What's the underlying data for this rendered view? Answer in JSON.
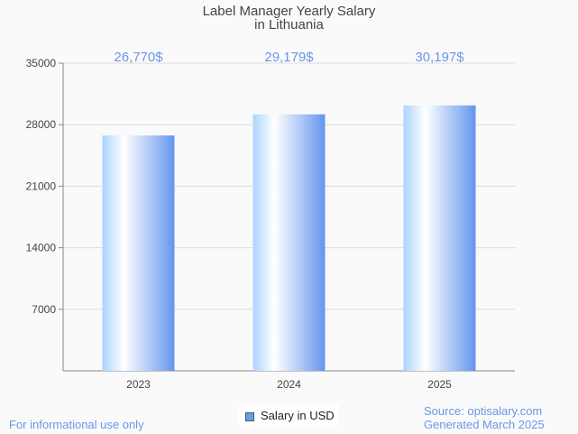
{
  "chart_data": {
    "type": "bar",
    "title": "Label Manager Yearly Salary",
    "subtitle": "in Lithuania",
    "categories": [
      "2023",
      "2024",
      "2025"
    ],
    "values": [
      26770,
      29179,
      30197
    ],
    "data_labels": [
      "26,770$",
      "29,179$",
      "30,197$"
    ],
    "yticks": [
      7000,
      14000,
      21000,
      28000,
      35000
    ],
    "ylim": [
      0,
      35000
    ],
    "xlabel": "",
    "ylabel": "",
    "legend": {
      "label": "Salary in USD",
      "placement": "bottom-center"
    },
    "grid": true,
    "colors": {
      "bar_light": "#aad4ff",
      "bar_mid": "#ffffff",
      "bar_dark": "#6495ed",
      "label": "#6b96e8"
    }
  },
  "footer": {
    "left": "For informational use only",
    "source": "Source: optisalary.com",
    "generated": "Generated March 2025"
  }
}
